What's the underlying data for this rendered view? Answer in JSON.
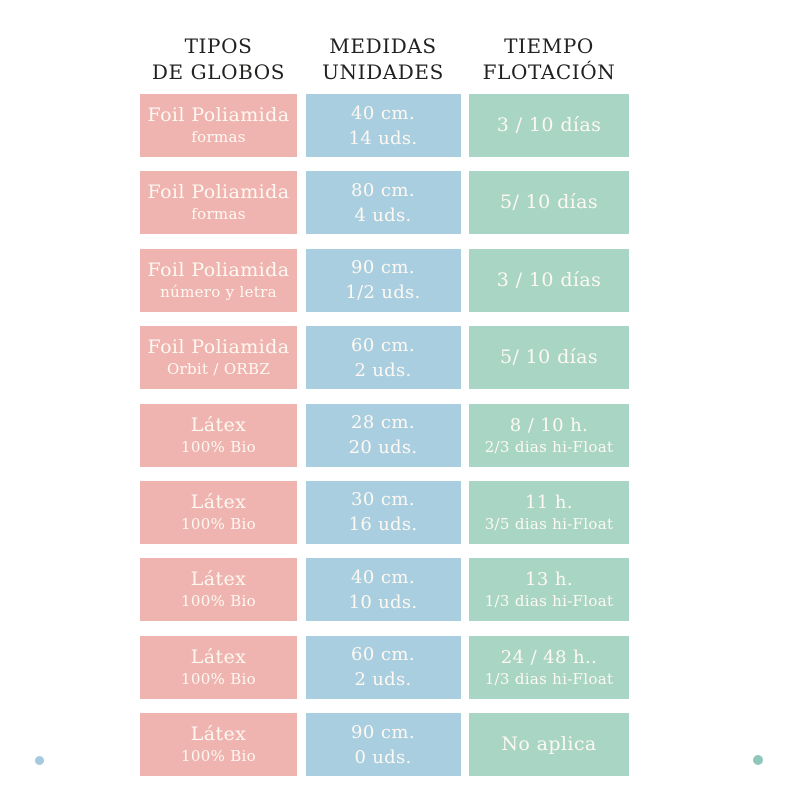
{
  "colors": {
    "tipo_cell": "#f0b4b0",
    "medida_cell": "#a9cee0",
    "tiempo_cell": "#a9d5c4",
    "header_text": "#21211f",
    "cell_text": "#fdf8f2",
    "dot_left": "#a4cade",
    "dot_right": "#8fc7ba"
  },
  "header": {
    "columns": [
      {
        "line1": "TIPOS",
        "line2": "DE GLOBOS"
      },
      {
        "line1": "MEDIDAS",
        "line2": "UNIDADES"
      },
      {
        "line1": "TIEMPO",
        "line2": "FLOTACIÓN"
      }
    ]
  },
  "table": {
    "rows": [
      {
        "tipo": {
          "line1": "Foil Poliamida",
          "line2": "formas"
        },
        "medida": {
          "line1": "40 cm.",
          "line2": "14 uds."
        },
        "tiempo": {
          "line1": "3 / 10 días",
          "line2": ""
        }
      },
      {
        "tipo": {
          "line1": "Foil Poliamida",
          "line2": "formas"
        },
        "medida": {
          "line1": "80 cm.",
          "line2": "4 uds."
        },
        "tiempo": {
          "line1": "5/ 10 días",
          "line2": ""
        }
      },
      {
        "tipo": {
          "line1": "Foil Poliamida",
          "line2": "número y letra"
        },
        "medida": {
          "line1": "90 cm.",
          "line2": "1/2 uds."
        },
        "tiempo": {
          "line1": "3 / 10 días",
          "line2": ""
        }
      },
      {
        "tipo": {
          "line1": "Foil Poliamida",
          "line2": "Orbit / ORBZ"
        },
        "medida": {
          "line1": "60 cm.",
          "line2": "2 uds."
        },
        "tiempo": {
          "line1": "5/ 10 días",
          "line2": ""
        }
      },
      {
        "tipo": {
          "line1": "Látex",
          "line2": "100% Bio"
        },
        "medida": {
          "line1": "28 cm.",
          "line2": "20 uds."
        },
        "tiempo": {
          "line1": "8 / 10 h.",
          "line2": "2/3 dias hi-Float"
        }
      },
      {
        "tipo": {
          "line1": "Látex",
          "line2": "100% Bio"
        },
        "medida": {
          "line1": "30 cm.",
          "line2": "16 uds."
        },
        "tiempo": {
          "line1": "11 h.",
          "line2": "3/5 dias hi-Float"
        }
      },
      {
        "tipo": {
          "line1": "Látex",
          "line2": "100% Bio"
        },
        "medida": {
          "line1": "40 cm.",
          "line2": "10 uds."
        },
        "tiempo": {
          "line1": "13 h.",
          "line2": "1/3 dias hi-Float"
        }
      },
      {
        "tipo": {
          "line1": "Látex",
          "line2": "100% Bio"
        },
        "medida": {
          "line1": "60 cm.",
          "line2": "2 uds."
        },
        "tiempo": {
          "line1": "24 / 48 h..",
          "line2": "1/3 dias hi-Float"
        }
      },
      {
        "tipo": {
          "line1": "Látex",
          "line2": "100% Bio"
        },
        "medida": {
          "line1": "90 cm.",
          "line2": "0 uds."
        },
        "tiempo": {
          "line1": "No aplica",
          "line2": ""
        }
      }
    ]
  },
  "chart_data": {
    "type": "table",
    "title": "",
    "columns": [
      "TIPOS DE GLOBOS",
      "MEDIDAS UNIDADES",
      "TIEMPO FLOTACIÓN"
    ],
    "rows": [
      [
        "Foil Poliamida formas",
        "40 cm. / 14 uds.",
        "3 / 10 días"
      ],
      [
        "Foil Poliamida formas",
        "80 cm. / 4 uds.",
        "5/ 10 días"
      ],
      [
        "Foil Poliamida número y letra",
        "90 cm. / 1/2 uds.",
        "3 / 10 días"
      ],
      [
        "Foil Poliamida Orbit / ORBZ",
        "60 cm. / 2 uds.",
        "5/ 10 días"
      ],
      [
        "Látex 100% Bio",
        "28 cm. / 20 uds.",
        "8 / 10 h. 2/3 dias hi-Float"
      ],
      [
        "Látex 100% Bio",
        "30 cm. / 16 uds.",
        "11 h. 3/5 dias hi-Float"
      ],
      [
        "Látex 100% Bio",
        "40 cm. / 10 uds.",
        "13 h. 1/3 dias hi-Float"
      ],
      [
        "Látex 100% Bio",
        "60 cm. / 2 uds.",
        "24 / 48 h.. 1/3 dias hi-Float"
      ],
      [
        "Látex 100% Bio",
        "90 cm. / 0 uds.",
        "No aplica"
      ]
    ]
  }
}
